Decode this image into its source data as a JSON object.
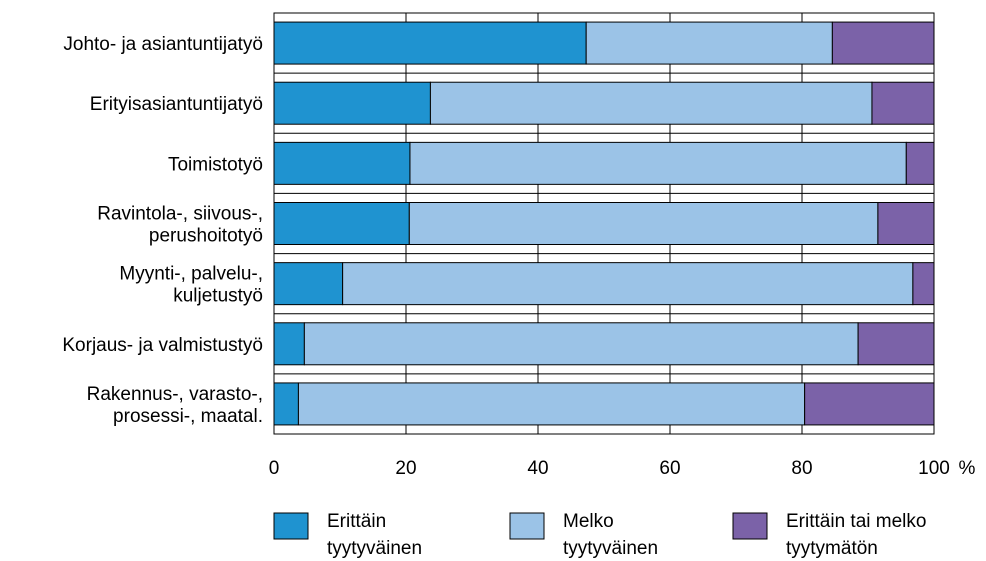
{
  "chart_data": {
    "type": "bar",
    "orientation": "horizontal",
    "stacked": true,
    "categories": [
      [
        "Johto- ja asiantuntijatyö"
      ],
      [
        "Erityisasiantuntijatyö"
      ],
      [
        "Toimistotyö"
      ],
      [
        "Ravintola-, siivous-,",
        "perushoitotyö"
      ],
      [
        "Myynti-, palvelu-,",
        "kuljetustyö"
      ],
      [
        "Korjaus- ja valmistustyö"
      ],
      [
        "Rakennus-, varasto-,",
        "prosessi-, maatal."
      ]
    ],
    "series": [
      {
        "name": [
          "Erittäin",
          "tyytyväinen"
        ],
        "color": "#1f93d0",
        "values": [
          47.3,
          23.7,
          20.6,
          20.5,
          10.4,
          4.6,
          3.7
        ]
      },
      {
        "name": [
          "Melko",
          "tyytyväinen"
        ],
        "color": "#9bc3e7",
        "values": [
          37.3,
          66.9,
          75.2,
          71.0,
          86.4,
          83.9,
          76.7
        ]
      },
      {
        "name": [
          "Erittäin tai melko",
          "tyytymätön"
        ],
        "color": "#7b62a8",
        "values": [
          15.4,
          9.4,
          4.2,
          8.5,
          3.2,
          11.5,
          19.6
        ]
      }
    ],
    "xlim": [
      0,
      100
    ],
    "x_ticks": [
      "0",
      "20",
      "40",
      "60",
      "80",
      "100"
    ],
    "x_unit": "%",
    "grid": true,
    "legend_position": "bottom"
  }
}
